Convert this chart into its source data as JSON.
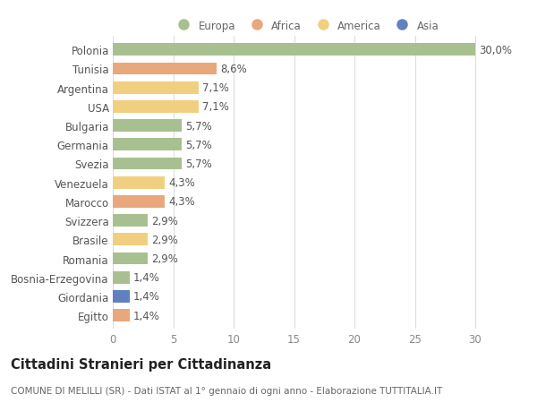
{
  "countries": [
    "Polonia",
    "Tunisia",
    "Argentina",
    "USA",
    "Bulgaria",
    "Germania",
    "Svezia",
    "Venezuela",
    "Marocco",
    "Svizzera",
    "Brasile",
    "Romania",
    "Bosnia-Erzegovina",
    "Giordania",
    "Egitto"
  ],
  "values": [
    30.0,
    8.6,
    7.1,
    7.1,
    5.7,
    5.7,
    5.7,
    4.3,
    4.3,
    2.9,
    2.9,
    2.9,
    1.4,
    1.4,
    1.4
  ],
  "labels": [
    "30,0%",
    "8,6%",
    "7,1%",
    "7,1%",
    "5,7%",
    "5,7%",
    "5,7%",
    "4,3%",
    "4,3%",
    "2,9%",
    "2,9%",
    "2,9%",
    "1,4%",
    "1,4%",
    "1,4%"
  ],
  "continents": [
    "Europa",
    "Africa",
    "America",
    "America",
    "Europa",
    "Europa",
    "Europa",
    "America",
    "Africa",
    "Europa",
    "America",
    "Europa",
    "Europa",
    "Asia",
    "Africa"
  ],
  "colors": {
    "Europa": "#a8c090",
    "Africa": "#e8a87c",
    "America": "#f0d080",
    "Asia": "#6080c0"
  },
  "title": "Cittadini Stranieri per Cittadinanza",
  "subtitle": "COMUNE DI MELILLI (SR) - Dati ISTAT al 1° gennaio di ogni anno - Elaborazione TUTTITALIA.IT",
  "xlim": [
    0,
    32
  ],
  "xticks": [
    0,
    5,
    10,
    15,
    20,
    25,
    30
  ],
  "background_color": "#ffffff",
  "grid_color": "#dddddd",
  "bar_height": 0.65,
  "label_fontsize": 8.5,
  "tick_fontsize": 8.5,
  "title_fontsize": 10.5,
  "subtitle_fontsize": 7.5,
  "legend_order": [
    "Europa",
    "Africa",
    "America",
    "Asia"
  ]
}
